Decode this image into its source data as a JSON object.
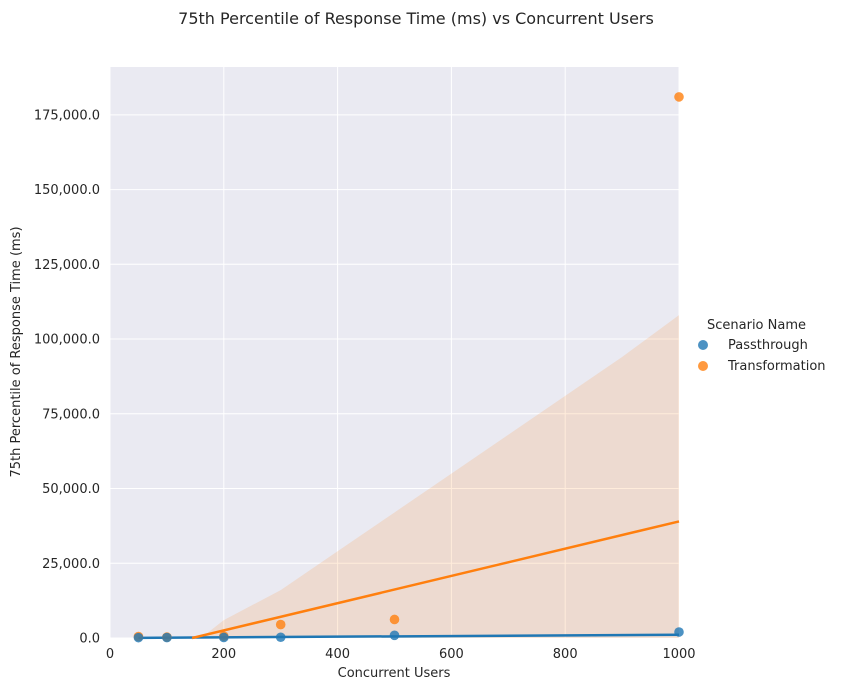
{
  "chart_data": {
    "type": "scatter",
    "title": "75th Percentile of Response Time (ms) vs Concurrent Users",
    "xlabel": "Concurrent Users",
    "ylabel": "75th Percentile of Response Time (ms)",
    "xlim": [
      0,
      1000
    ],
    "ylim": [
      0,
      191000
    ],
    "xticks": [
      0,
      200,
      400,
      600,
      800,
      1000
    ],
    "yticks": [
      0,
      25000,
      50000,
      75000,
      100000,
      125000,
      150000,
      175000
    ],
    "xtick_labels": [
      "0",
      "200",
      "400",
      "600",
      "800",
      "1000"
    ],
    "ytick_labels": [
      "0.0",
      "25,000.0",
      "50,000.0",
      "75,000.0",
      "100,000.0",
      "125,000.0",
      "150,000.0",
      "175,000.0"
    ],
    "grid": true,
    "legend": {
      "title": "Scenario Name",
      "placement": "right"
    },
    "series": [
      {
        "name": "Passthrough",
        "color": "#1f77b4",
        "x": [
          50,
          100,
          200,
          300,
          500,
          1000
        ],
        "y": [
          120,
          150,
          180,
          250,
          900,
          2000
        ],
        "regression": {
          "x": [
            50,
            1000
          ],
          "y": [
            50,
            1100
          ]
        },
        "ci_upper": [],
        "ci_lower": []
      },
      {
        "name": "Transformation",
        "color": "#ff7f0e",
        "x": [
          50,
          100,
          200,
          300,
          500,
          1000
        ],
        "y": [
          500,
          300,
          600,
          4500,
          6200,
          181000
        ],
        "regression": {
          "x": [
            50,
            1000
          ],
          "y": [
            -4300,
            39000
          ]
        },
        "ci_upper_x": [
          50,
          160,
          200,
          300,
          400,
          500,
          600,
          700,
          800,
          900,
          1000
        ],
        "ci_upper_y": [
          0,
          0,
          6000,
          16000,
          29000,
          42000,
          55000,
          68000,
          81000,
          94000,
          108000
        ],
        "ci_lower_x": [
          50,
          1000
        ],
        "ci_lower_y": [
          0,
          0
        ]
      }
    ]
  }
}
